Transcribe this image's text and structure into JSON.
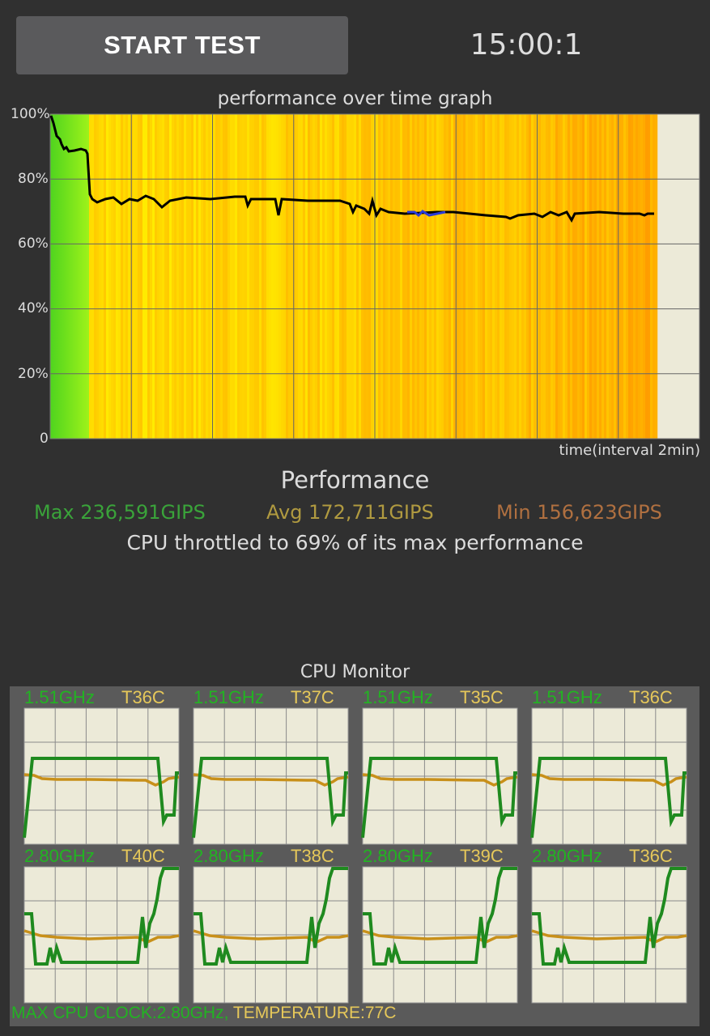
{
  "header": {
    "start_button": "START TEST",
    "timer": "15:00:1"
  },
  "graph": {
    "title": "performance over time graph",
    "y_labels": [
      "100%",
      "80%",
      "60%",
      "40%",
      "20%",
      "0"
    ],
    "x_label": "time(interval 2min)"
  },
  "performance": {
    "heading": "Performance",
    "max": "Max 236,591GIPS",
    "avg": "Avg 172,711GIPS",
    "min": "Min 156,623GIPS",
    "throttle": "CPU throttled to 69% of its max performance"
  },
  "cpu_monitor": {
    "title": "CPU Monitor",
    "cores": [
      {
        "freq": "1.51GHz",
        "temp": "T36C"
      },
      {
        "freq": "1.51GHz",
        "temp": "T37C"
      },
      {
        "freq": "1.51GHz",
        "temp": "T35C"
      },
      {
        "freq": "1.51GHz",
        "temp": "T36C"
      },
      {
        "freq": "2.80GHz",
        "temp": "T40C"
      },
      {
        "freq": "2.80GHz",
        "temp": "T38C"
      },
      {
        "freq": "2.80GHz",
        "temp": "T39C"
      },
      {
        "freq": "2.80GHz",
        "temp": "T36C"
      }
    ],
    "footer_clock": "MAX CPU CLOCK:2.80GHz,",
    "footer_temp": "TEMPERATURE:77C"
  },
  "colors": {
    "background": "#303030",
    "graph_bg": "#ecead8",
    "green": "#22b422",
    "temp_yellow": "#e6c85a",
    "line_black": "#000000"
  }
}
